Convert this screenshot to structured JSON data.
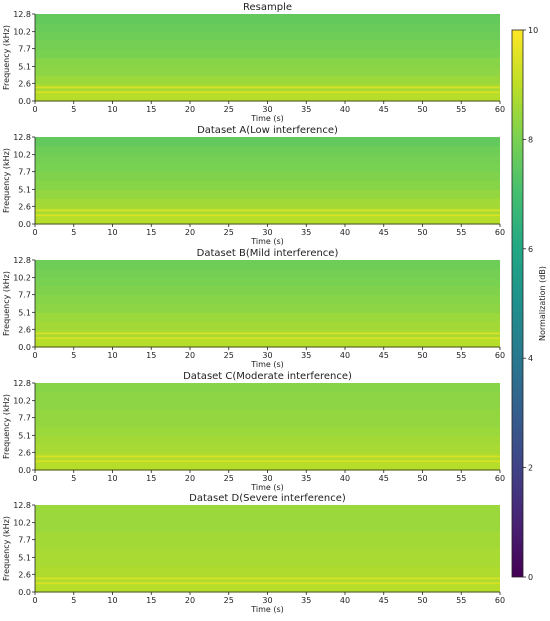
{
  "chart_data": {
    "type": "heatmap",
    "colormap": "viridis",
    "x_ticks": [
      0,
      5,
      10,
      15,
      20,
      25,
      30,
      35,
      40,
      45,
      50,
      55,
      60
    ],
    "y_ticks": [
      "0.0",
      "2.6",
      "5.1",
      "7.7",
      "10.2",
      "12.8"
    ],
    "xlabel": "Time (s)",
    "ylabel": "Frequency (kHz)",
    "xlim": [
      0,
      60
    ],
    "ylim": [
      0,
      12.8
    ],
    "colorbar": {
      "label": "Normalization (dB)",
      "ticks": [
        0,
        2,
        4,
        6,
        8,
        10
      ],
      "range": [
        0,
        10
      ]
    },
    "panels": [
      {
        "title": "Resample",
        "bands_khz": [
          0.0,
          1.3,
          2.6,
          3.8,
          5.1,
          6.4,
          7.7,
          9.0,
          10.2,
          11.5,
          12.8
        ],
        "band_values_db": [
          8.9,
          8.7,
          8.5,
          8.3,
          8.2,
          8.0,
          7.9,
          7.8,
          7.7,
          7.6
        ],
        "lines_khz": [
          1.3,
          2.0
        ],
        "line_value_db": 9.4
      },
      {
        "title": "Dataset A(Low interference)",
        "bands_khz": [
          0.0,
          1.3,
          2.6,
          3.8,
          5.1,
          6.4,
          7.7,
          9.0,
          10.2,
          11.5,
          12.8
        ],
        "band_values_db": [
          8.9,
          8.7,
          8.6,
          8.4,
          8.2,
          8.1,
          8.0,
          7.9,
          7.8,
          7.6
        ],
        "lines_khz": [
          1.3,
          2.0
        ],
        "line_value_db": 9.4
      },
      {
        "title": "Dataset B(Mild interference)",
        "bands_khz": [
          0.0,
          1.3,
          2.6,
          3.8,
          5.1,
          6.4,
          7.7,
          9.0,
          10.2,
          11.5,
          12.8
        ],
        "band_values_db": [
          8.9,
          8.7,
          8.6,
          8.5,
          8.3,
          8.2,
          8.1,
          8.0,
          7.9,
          7.8
        ],
        "lines_khz": [
          1.3,
          2.0
        ],
        "line_value_db": 9.4
      },
      {
        "title": "Dataset C(Moderate interference)",
        "bands_khz": [
          0.0,
          1.3,
          2.6,
          3.8,
          5.1,
          6.4,
          7.7,
          9.0,
          10.2,
          11.5,
          12.8
        ],
        "band_values_db": [
          8.9,
          8.8,
          8.7,
          8.6,
          8.5,
          8.4,
          8.4,
          8.3,
          8.3,
          8.2
        ],
        "lines_khz": [
          1.3,
          2.0
        ],
        "line_value_db": 9.4
      },
      {
        "title": "Dataset D(Severe interference)",
        "bands_khz": [
          0.0,
          1.3,
          2.6,
          3.8,
          5.1,
          6.4,
          7.7,
          9.0,
          10.2,
          11.5,
          12.8
        ],
        "band_values_db": [
          8.9,
          8.8,
          8.8,
          8.7,
          8.7,
          8.6,
          8.6,
          8.5,
          8.5,
          8.5
        ],
        "lines_khz": [
          1.3,
          2.0
        ],
        "line_value_db": 9.4
      }
    ]
  }
}
